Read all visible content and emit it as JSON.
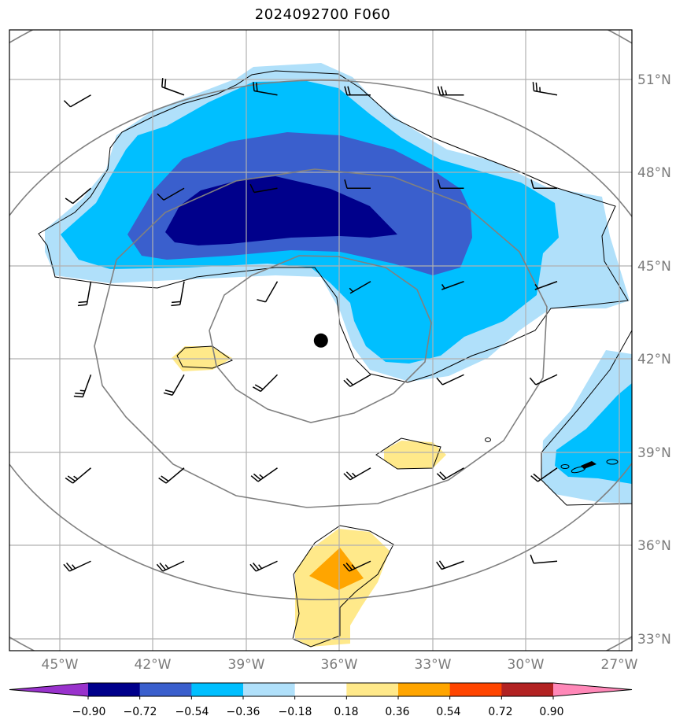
{
  "title": "2024092700 F060",
  "chart_data": {
    "type": "heatmap",
    "title": "2024092700 F060",
    "x_ticks": [
      "45°W",
      "42°W",
      "39°W",
      "36°W",
      "33°W",
      "30°W",
      "27°W"
    ],
    "y_ticks": [
      "51°N",
      "48°N",
      "45°N",
      "42°N",
      "39°N",
      "36°N",
      "33°N"
    ],
    "lon_range": [
      -46.6,
      -26.6
    ],
    "lat_range": [
      32.6,
      52.6
    ],
    "grid": true,
    "center_marker": {
      "lon": -36.6,
      "lat": 42.6
    },
    "colorbar": {
      "levels": [
        "−0.90",
        "−0.72",
        "−0.54",
        "−0.36",
        "−0.18",
        "0.18",
        "0.36",
        "0.54",
        "0.72",
        "0.90"
      ],
      "colors": [
        "#9932CC",
        "#00008B",
        "#3A5FCD",
        "#00BFFF",
        "#B0E0FA",
        "#FFFFFF",
        "#FFE98A",
        "#FFA500",
        "#FF4500",
        "#B22222",
        "#FF88B8"
      ],
      "extend": "both"
    },
    "wind_barbs": {
      "lons": [
        -44,
        -41,
        -38,
        -35,
        -32,
        -29
      ],
      "lats": [
        50.5,
        47.5,
        44.5,
        41.5,
        38.5,
        35.5
      ],
      "direction_deg": [
        [
          240,
          290,
          280,
          270,
          270,
          280
        ],
        [
          230,
          240,
          260,
          270,
          270,
          270
        ],
        [
          190,
          190,
          210,
          240,
          250,
          250
        ],
        [
          200,
          210,
          225,
          240,
          245,
          245
        ],
        [
          230,
          230,
          235,
          240,
          240,
          235
        ],
        [
          245,
          245,
          245,
          245,
          250,
          265
        ]
      ],
      "speed_kt": [
        [
          10,
          20,
          20,
          20,
          25,
          25
        ],
        [
          10,
          10,
          10,
          10,
          10,
          10
        ],
        [
          20,
          20,
          10,
          5,
          5,
          5
        ],
        [
          25,
          20,
          20,
          20,
          10,
          10
        ],
        [
          25,
          20,
          25,
          25,
          20,
          20
        ],
        [
          25,
          25,
          25,
          25,
          20,
          10
        ]
      ]
    }
  }
}
